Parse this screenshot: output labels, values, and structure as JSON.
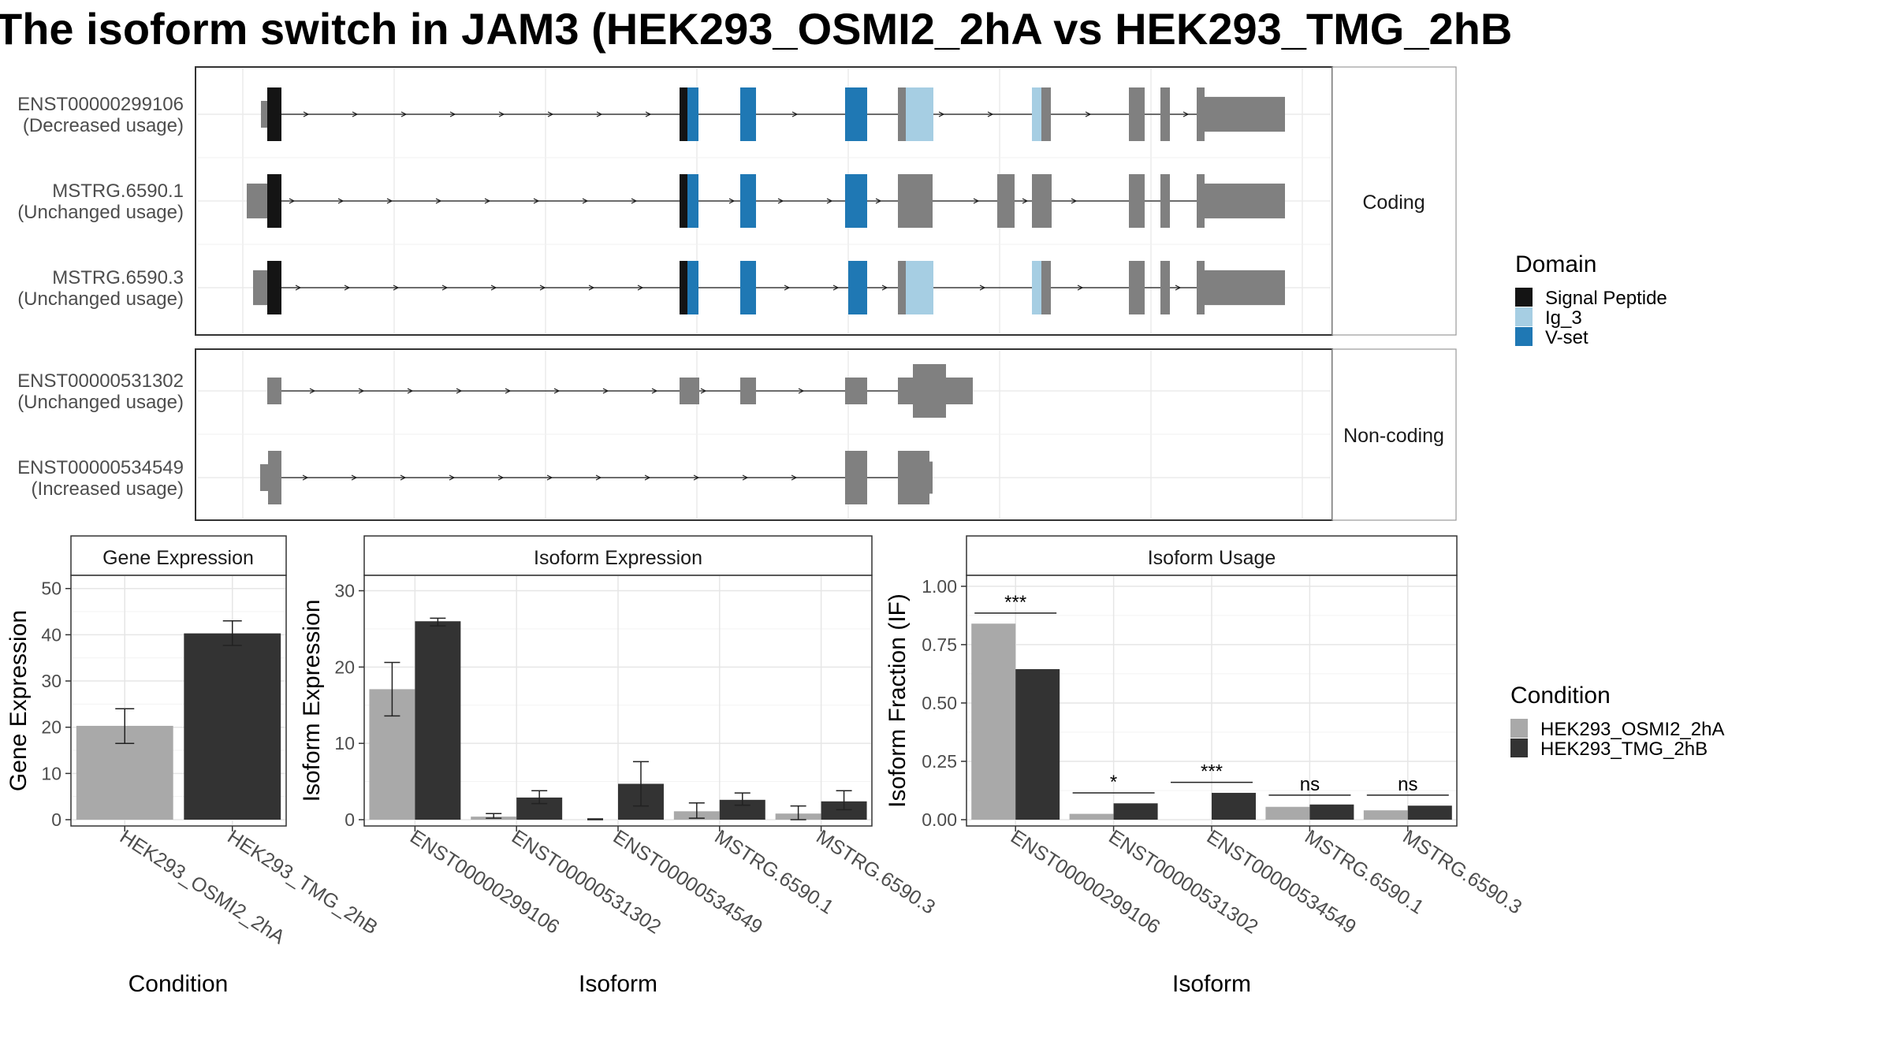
{
  "title": "The isoform switch in JAM3 (HEK293_OSMI2_2hA vs HEK293_TMG_2hB",
  "colors": {
    "signal_peptide": "#141414",
    "ig_3": "#a6cee3",
    "v_set": "#1f78b4",
    "exon": "#808080",
    "cond_a": "#a9a9a9",
    "cond_b": "#333333"
  },
  "panels": {
    "coding_label": "Coding",
    "noncoding_label": "Non-coding"
  },
  "transcripts": {
    "coding": [
      {
        "id": "ENST00000299106",
        "status": "(Decreased usage)"
      },
      {
        "id": "MSTRG.6590.1",
        "status": "(Unchanged usage)"
      },
      {
        "id": "MSTRG.6590.3",
        "status": "(Unchanged usage)"
      }
    ],
    "noncoding": [
      {
        "id": "ENST00000531302",
        "status": "(Unchanged usage)"
      },
      {
        "id": "ENST00000534549",
        "status": "(Increased usage)"
      }
    ]
  },
  "legends": {
    "domain_title": "Domain",
    "domain_items": [
      {
        "label": "Signal Peptide",
        "color": "#141414"
      },
      {
        "label": "Ig_3",
        "color": "#a6cee3"
      },
      {
        "label": "V-set",
        "color": "#1f78b4"
      }
    ],
    "condition_title": "Condition",
    "condition_items": [
      {
        "label": "HEK293_OSMI2_2hA",
        "color": "#a9a9a9"
      },
      {
        "label": "HEK293_TMG_2hB",
        "color": "#333333"
      }
    ]
  },
  "chart_data": [
    {
      "type": "bar",
      "title": "Gene Expression",
      "xlabel": "Condition",
      "ylabel": "Gene Expression",
      "ylim": [
        0,
        52
      ],
      "yticks": [
        0,
        10,
        20,
        30,
        40,
        50
      ],
      "categories": [
        "HEK293_OSMI2_2hA",
        "HEK293_TMG_2hB"
      ],
      "values": [
        20.3,
        40.3
      ],
      "err_low": [
        16.5,
        37.7
      ],
      "err_high": [
        24.0,
        43.0
      ]
    },
    {
      "type": "bar",
      "title": "Isoform Expression",
      "xlabel": "Isoform",
      "ylabel": "Isoform Expression",
      "ylim": [
        0,
        31.5
      ],
      "yticks": [
        0,
        10,
        20,
        30
      ],
      "categories": [
        "ENST00000299106",
        "ENST00000531302",
        "ENST00000534549",
        "MSTRG.6590.1",
        "MSTRG.6590.3"
      ],
      "series": [
        {
          "name": "HEK293_OSMI2_2hA",
          "values": [
            17.1,
            0.4,
            0.0,
            1.1,
            0.8
          ],
          "err_low": [
            13.6,
            0.2,
            0.0,
            0.2,
            0.0
          ],
          "err_high": [
            20.6,
            0.8,
            0.1,
            2.2,
            1.8
          ]
        },
        {
          "name": "HEK293_TMG_2hB",
          "values": [
            26.0,
            2.9,
            4.7,
            2.6,
            2.4
          ],
          "err_low": [
            25.4,
            2.1,
            1.8,
            1.9,
            1.3
          ],
          "err_high": [
            26.4,
            3.8,
            7.6,
            3.5,
            3.8
          ]
        }
      ]
    },
    {
      "type": "bar",
      "title": "Isoform Usage",
      "xlabel": "Isoform",
      "ylabel": "Isoform Fraction (IF)",
      "ylim": [
        0,
        1.03
      ],
      "yticks": [
        0,
        0.25,
        0.5,
        0.75,
        1.0
      ],
      "ytick_labels": [
        "0.00",
        "0.25",
        "0.50",
        "0.75",
        "1.00"
      ],
      "categories": [
        "ENST00000299106",
        "ENST00000531302",
        "ENST00000534549",
        "MSTRG.6590.1",
        "MSTRG.6590.3"
      ],
      "series": [
        {
          "name": "HEK293_OSMI2_2hA",
          "values": [
            0.84,
            0.025,
            0.0,
            0.055,
            0.04
          ]
        },
        {
          "name": "HEK293_TMG_2hB",
          "values": [
            0.645,
            0.07,
            0.115,
            0.065,
            0.06
          ]
        }
      ],
      "significance": [
        "***",
        "*",
        "***",
        "ns",
        "ns"
      ],
      "sig_line_y": [
        0.885,
        0.115,
        0.16,
        0.105,
        0.105
      ]
    }
  ]
}
